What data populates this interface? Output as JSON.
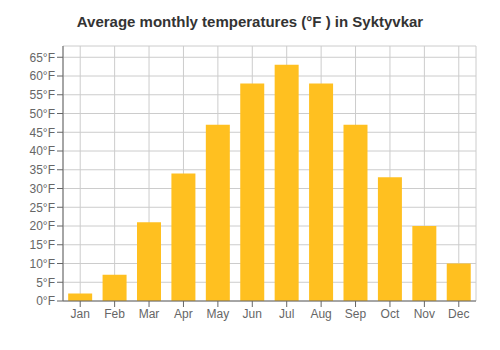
{
  "chart_data": {
    "type": "bar",
    "title": "Average monthly temperatures (°F ) in Syktyvkar",
    "categories": [
      "Jan",
      "Feb",
      "Mar",
      "Apr",
      "May",
      "Jun",
      "Jul",
      "Aug",
      "Sep",
      "Oct",
      "Nov",
      "Dec"
    ],
    "values": [
      2,
      7,
      21,
      34,
      47,
      58,
      63,
      58,
      47,
      33,
      20,
      10
    ],
    "color": "#FFC020",
    "ylim": [
      0,
      68
    ],
    "yticks": [
      {
        "value": 0,
        "label": "0°F"
      },
      {
        "value": 5,
        "label": "5°F"
      },
      {
        "value": 10,
        "label": "10°F"
      },
      {
        "value": 15,
        "label": "15°F"
      },
      {
        "value": 20,
        "label": "20°F"
      },
      {
        "value": 25,
        "label": "25°F"
      },
      {
        "value": 30,
        "label": "30°F"
      },
      {
        "value": 35,
        "label": "35°F"
      },
      {
        "value": 40,
        "label": "40°F"
      },
      {
        "value": 45,
        "label": "45°F"
      },
      {
        "value": 50,
        "label": "50°F"
      },
      {
        "value": 55,
        "label": "55°F"
      },
      {
        "value": 60,
        "label": "60°F"
      },
      {
        "value": 65,
        "label": "65°F"
      }
    ],
    "grid": true
  }
}
